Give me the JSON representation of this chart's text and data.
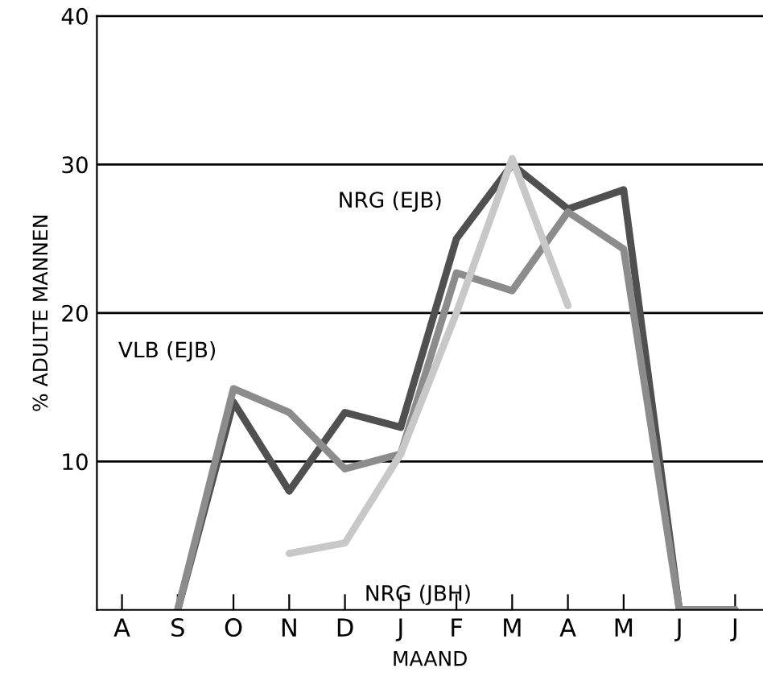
{
  "chart_data": {
    "type": "line",
    "xlabel": "MAAND",
    "ylabel": "% ADULTE MANNEN",
    "categories": [
      "A",
      "S",
      "O",
      "N",
      "D",
      "J",
      "F",
      "M",
      "A",
      "M",
      "J",
      "J"
    ],
    "series": [
      {
        "name": "NRG (EJB)",
        "color": "#505050",
        "values": [
          null,
          0,
          14,
          8,
          13.3,
          12.3,
          25,
          30,
          27,
          28.3,
          0,
          0
        ]
      },
      {
        "name": "VLB (EJB)",
        "color": "#8c8c8c",
        "values": [
          null,
          0,
          14.9,
          13.3,
          9.5,
          10.5,
          22.7,
          21.5,
          26.8,
          24.3,
          0,
          0
        ]
      },
      {
        "name": "NRG (JBH)",
        "color": "#c8c8c8",
        "values": [
          null,
          null,
          null,
          3.8,
          4.5,
          10.5,
          20,
          30.4,
          20.5,
          null,
          null,
          null
        ]
      }
    ],
    "ylim": [
      0,
      40
    ],
    "yticks": [
      10,
      20,
      30,
      40
    ],
    "grid": "y",
    "marker": "none",
    "line_style": "solid",
    "legend": false
  }
}
